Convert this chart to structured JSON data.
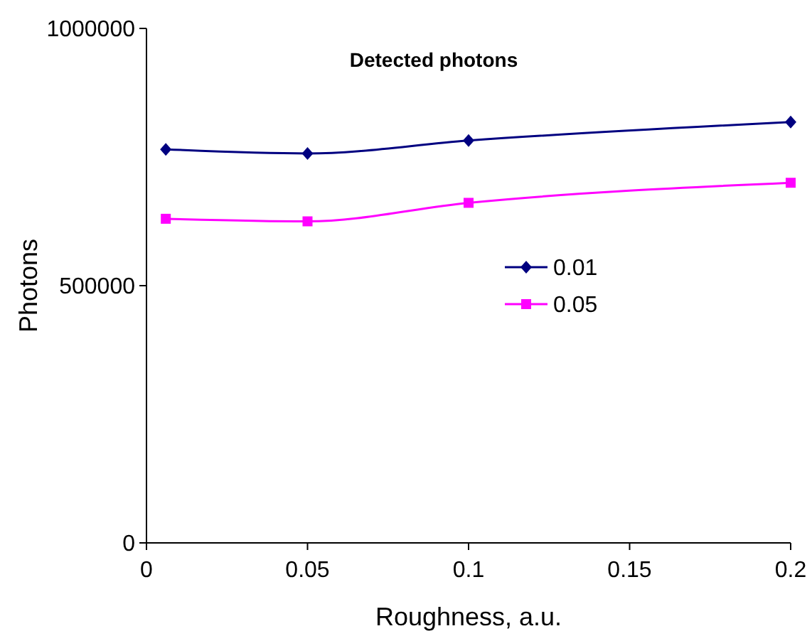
{
  "chart_data": {
    "type": "line",
    "title": "Detected photons",
    "xlabel": "Roughness, a.u.",
    "ylabel": "Photons",
    "x": [
      0.006,
      0.05,
      0.1,
      0.2
    ],
    "series": [
      {
        "name": "0.01",
        "color": "#000080",
        "marker": "diamond",
        "values": [
          765000,
          757000,
          782000,
          818000
        ]
      },
      {
        "name": "0.05",
        "color": "#ff00ff",
        "marker": "square",
        "values": [
          630000,
          625000,
          661000,
          700000
        ]
      }
    ],
    "xlim": [
      0,
      0.2
    ],
    "xticks": [
      0,
      0.05,
      0.1,
      0.15,
      0.2
    ],
    "ylim": [
      0,
      1000000
    ],
    "yticks": [
      0,
      500000,
      1000000
    ],
    "grid": false,
    "legend": "right",
    "line_style": "solid"
  }
}
